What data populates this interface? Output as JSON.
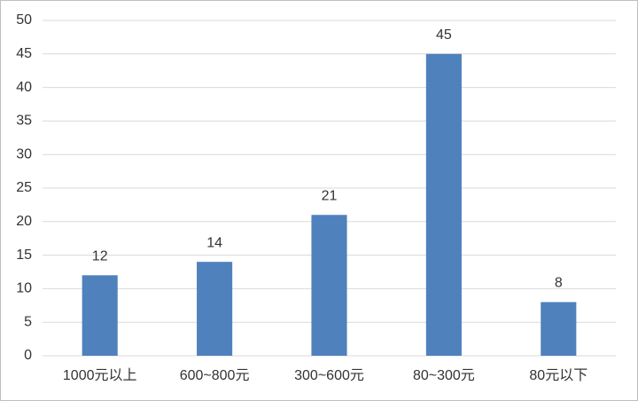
{
  "chart_data": {
    "type": "bar",
    "categories": [
      "1000元以上",
      "600~800元",
      "300~600元",
      "80~300元",
      "80元以下"
    ],
    "values": [
      12,
      14,
      21,
      45,
      8
    ],
    "color": "#4f81bd",
    "ylim": [
      0,
      50
    ],
    "yticks": [
      0,
      5,
      10,
      15,
      20,
      25,
      30,
      35,
      40,
      45,
      50
    ],
    "grid": true,
    "data_labels": true
  }
}
